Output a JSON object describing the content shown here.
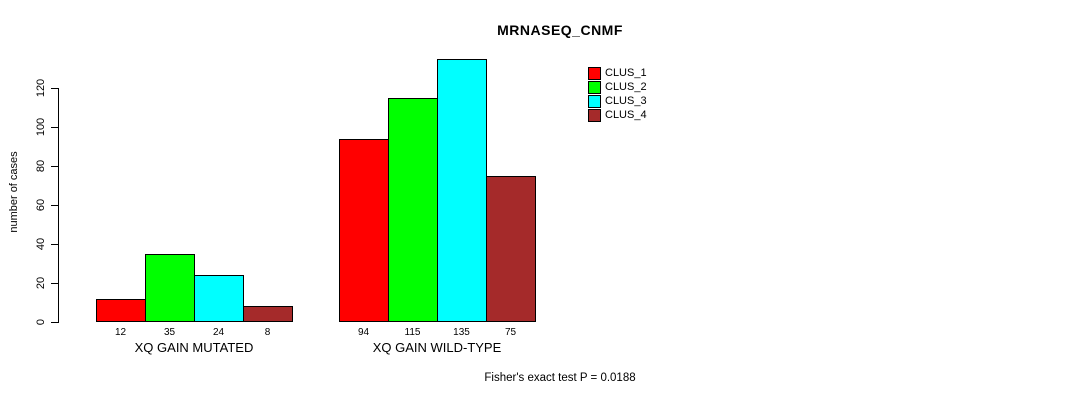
{
  "title": "MRNASEQ_CNMF",
  "annotation": "Fisher's exact test P = 0.0188",
  "chart_data": {
    "type": "bar",
    "title": "MRNASEQ_CNMF",
    "xlabel": "",
    "ylabel": "number of cases",
    "categories": [
      "XQ GAIN MUTATED",
      "XQ GAIN WILD-TYPE"
    ],
    "series": [
      {
        "name": "CLUS_1",
        "color": "#FF0000",
        "values": [
          12,
          94
        ]
      },
      {
        "name": "CLUS_2",
        "color": "#00FF00",
        "values": [
          35,
          115
        ]
      },
      {
        "name": "CLUS_3",
        "color": "#00FFFF",
        "values": [
          24,
          135
        ]
      },
      {
        "name": "CLUS_4",
        "color": "#A52A2A",
        "values": [
          8,
          75
        ]
      }
    ],
    "bar_value_labels_shown": true,
    "yticks": [
      0,
      20,
      40,
      60,
      80,
      100,
      120
    ],
    "ylim": [
      0,
      135
    ],
    "grid": false,
    "legend_position": "top-right",
    "annotation": "Fisher's exact test P = 0.0188"
  },
  "colors": {
    "background": "#FFFFFF",
    "axis": "#000000",
    "text": "#000000"
  }
}
